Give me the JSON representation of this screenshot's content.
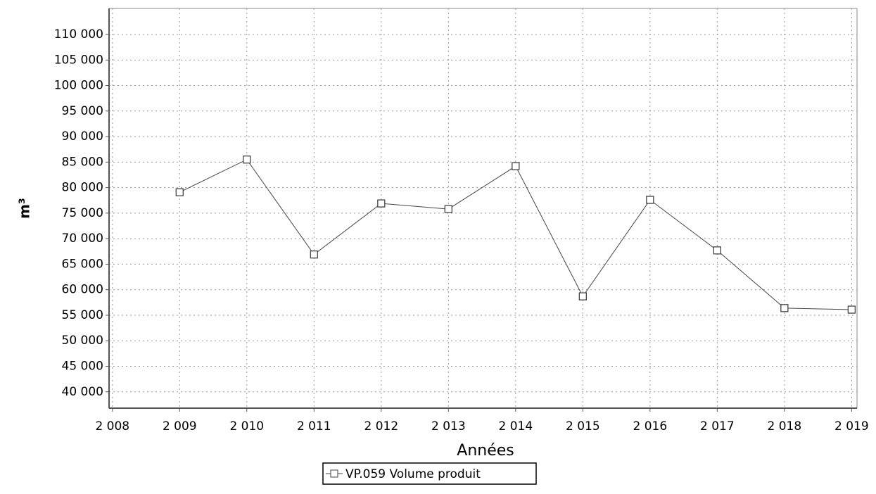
{
  "chart_data": {
    "type": "line",
    "x_label": "Années",
    "y_label": "m³",
    "x": [
      2009,
      2010,
      2011,
      2012,
      2013,
      2014,
      2015,
      2016,
      2017,
      2018,
      2019
    ],
    "series": [
      {
        "name": "VP.059 Volume produit",
        "color": "#444444",
        "values": [
          79100,
          85500,
          66900,
          76900,
          75800,
          84200,
          58700,
          77600,
          67700,
          56400,
          56100
        ]
      }
    ],
    "xlim": [
      2007.95,
      2019.08
    ],
    "xticks": [
      {
        "value": 2008,
        "label": "2 008"
      },
      {
        "value": 2009,
        "label": "2 009"
      },
      {
        "value": 2010,
        "label": "2 010"
      },
      {
        "value": 2011,
        "label": "2 011"
      },
      {
        "value": 2012,
        "label": "2 012"
      },
      {
        "value": 2013,
        "label": "2 013"
      },
      {
        "value": 2014,
        "label": "2 014"
      },
      {
        "value": 2015,
        "label": "2 015"
      },
      {
        "value": 2016,
        "label": "2 016"
      },
      {
        "value": 2017,
        "label": "2 017"
      },
      {
        "value": 2018,
        "label": "2 018"
      },
      {
        "value": 2019,
        "label": "2 019"
      }
    ],
    "ylim": [
      36800,
      115100
    ],
    "yticks": [
      {
        "value": 40000,
        "label": "40 000"
      },
      {
        "value": 45000,
        "label": "45 000"
      },
      {
        "value": 50000,
        "label": "50 000"
      },
      {
        "value": 55000,
        "label": "55 000"
      },
      {
        "value": 60000,
        "label": "60 000"
      },
      {
        "value": 65000,
        "label": "65 000"
      },
      {
        "value": 70000,
        "label": "70 000"
      },
      {
        "value": 75000,
        "label": "75 000"
      },
      {
        "value": 80000,
        "label": "80 000"
      },
      {
        "value": 85000,
        "label": "85 000"
      },
      {
        "value": 90000,
        "label": "90 000"
      },
      {
        "value": 95000,
        "label": "95 000"
      },
      {
        "value": 100000,
        "label": "100 000"
      },
      {
        "value": 105000,
        "label": "105 000"
      },
      {
        "value": 110000,
        "label": "110 000"
      }
    ],
    "grid": true,
    "legend": "bottom"
  }
}
